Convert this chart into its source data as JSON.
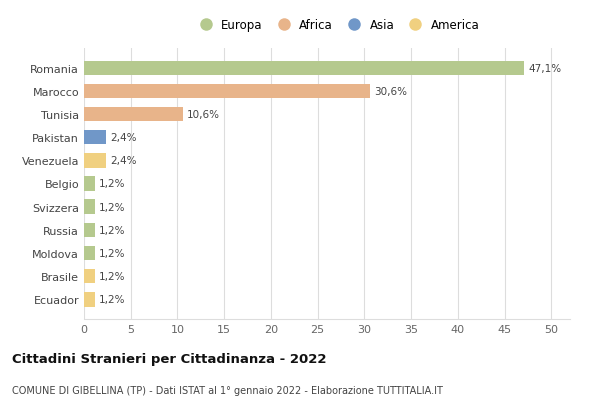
{
  "countries": [
    "Romania",
    "Marocco",
    "Tunisia",
    "Pakistan",
    "Venezuela",
    "Belgio",
    "Svizzera",
    "Russia",
    "Moldova",
    "Brasile",
    "Ecuador"
  ],
  "values": [
    47.1,
    30.6,
    10.6,
    2.4,
    2.4,
    1.2,
    1.2,
    1.2,
    1.2,
    1.2,
    1.2
  ],
  "labels": [
    "47,1%",
    "30,6%",
    "10,6%",
    "2,4%",
    "2,4%",
    "1,2%",
    "1,2%",
    "1,2%",
    "1,2%",
    "1,2%",
    "1,2%"
  ],
  "colors": [
    "#b5c98e",
    "#e8b48a",
    "#e8b48a",
    "#7097c8",
    "#f0d080",
    "#b5c98e",
    "#b5c98e",
    "#b5c98e",
    "#b5c98e",
    "#f0d080",
    "#f0d080"
  ],
  "legend_labels": [
    "Europa",
    "Africa",
    "Asia",
    "America"
  ],
  "legend_colors": [
    "#b5c98e",
    "#e8b48a",
    "#7097c8",
    "#f0d080"
  ],
  "title": "Cittadini Stranieri per Cittadinanza - 2022",
  "subtitle": "COMUNE DI GIBELLINA (TP) - Dati ISTAT al 1° gennaio 2022 - Elaborazione TUTTITALIA.IT",
  "xlim": [
    0,
    52
  ],
  "xticks": [
    0,
    5,
    10,
    15,
    20,
    25,
    30,
    35,
    40,
    45,
    50
  ],
  "background_color": "#ffffff",
  "grid_color": "#dddddd",
  "bar_height": 0.62
}
